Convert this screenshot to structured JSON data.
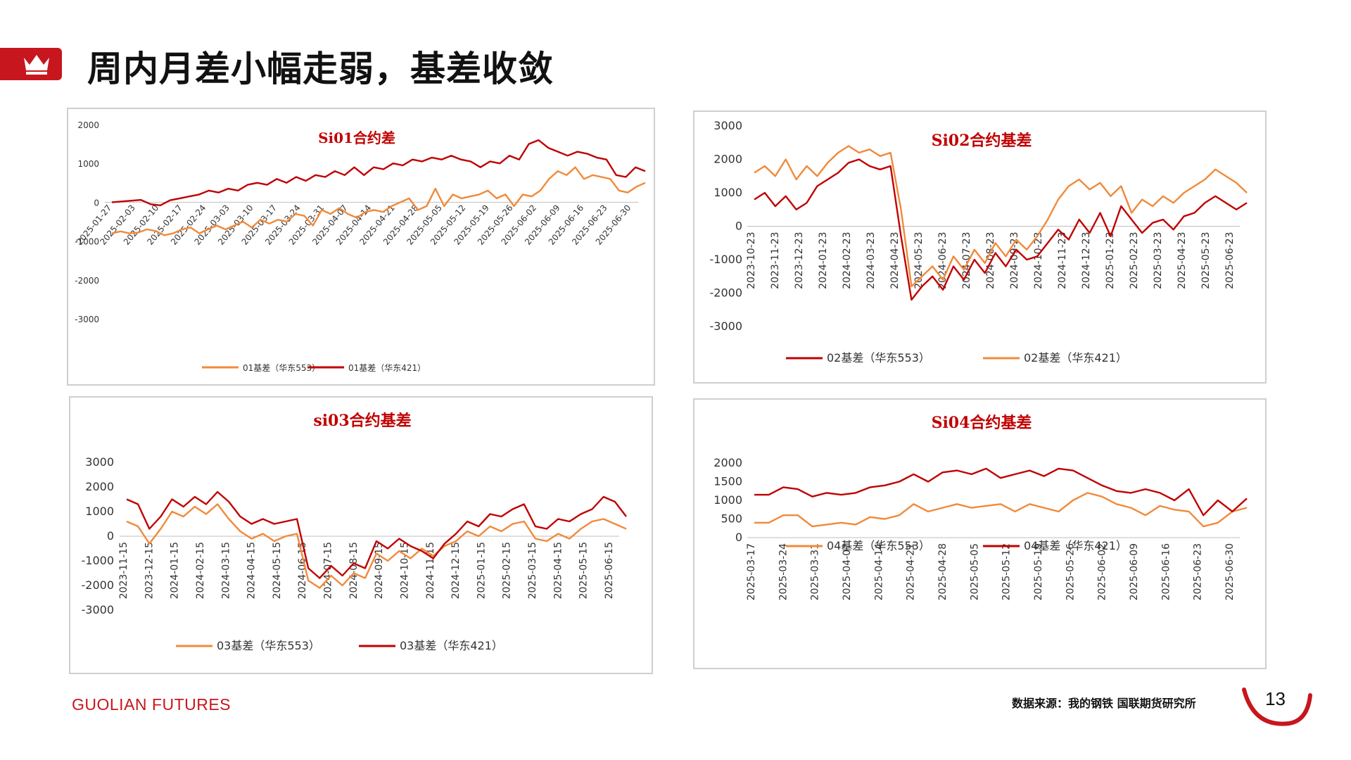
{
  "page": {
    "title": "周内月差小幅走弱，基差收敛",
    "brand": "GUOLIAN FUTURES",
    "source": "数据来源：我的钢铁  国联期货研究所",
    "page_number": "13"
  },
  "colors": {
    "brand_red": "#c7161d",
    "series_red": "#c00000",
    "series_orange": "#f08a3a"
  },
  "chart_data": [
    {
      "id": "c1",
      "type": "line",
      "title": "Si01合约差",
      "ylim": [
        -3000,
        2000
      ],
      "yticks": [
        2000,
        1000,
        0,
        -1000,
        -2000,
        -3000
      ],
      "xticks": [
        "2025-01-27",
        "2025-02-03",
        "2025-02-10",
        "2025-02-17",
        "2025-02-24",
        "2025-03-03",
        "2025-03-10",
        "2025-03-17",
        "2025-03-24",
        "2025-03-31",
        "2025-04-07",
        "2025-04-14",
        "2025-04-21",
        "2025-04-28",
        "2025-05-05",
        "2025-05-12",
        "2025-05-19",
        "2025-05-26",
        "2025-06-02",
        "2025-06-09",
        "2025-06-16",
        "2025-06-23",
        "2025-06-30"
      ],
      "grid": false,
      "legend": "bottom",
      "series": [
        {
          "name": "01基差（华东553）",
          "color": "#f08a3a",
          "values": [
            -800,
            -750,
            -800,
            -780,
            -700,
            -740,
            -850,
            -800,
            -700,
            -650,
            -800,
            -700,
            -600,
            -700,
            -600,
            -500,
            -650,
            -450,
            -550,
            -450,
            -500,
            -300,
            -350,
            -600,
            -200,
            -300,
            -150,
            -300,
            -400,
            -250,
            -200,
            -250,
            -100,
            0,
            100,
            -200,
            -100,
            350,
            -100,
            200,
            100,
            150,
            200,
            300,
            100,
            200,
            -100,
            200,
            150,
            300,
            600,
            800,
            700,
            900,
            600,
            700,
            650,
            600,
            300,
            250,
            400,
            500
          ]
        },
        {
          "name": "01基差（华东421）",
          "color": "#c00000",
          "values": [
            0,
            20,
            40,
            60,
            -50,
            -80,
            50,
            100,
            150,
            200,
            300,
            250,
            350,
            300,
            450,
            500,
            450,
            600,
            500,
            650,
            550,
            700,
            650,
            800,
            700,
            900,
            700,
            900,
            850,
            1000,
            950,
            1100,
            1050,
            1150,
            1100,
            1200,
            1100,
            1050,
            900,
            1050,
            1000,
            1200,
            1100,
            1500,
            1600,
            1400,
            1300,
            1200,
            1300,
            1250,
            1150,
            1100,
            700,
            650,
            900,
            800
          ]
        }
      ]
    },
    {
      "id": "c2",
      "type": "line",
      "title": "Si02合约基差",
      "ylim": [
        -3000,
        3000
      ],
      "yticks": [
        3000,
        2000,
        1000,
        0,
        -1000,
        -2000,
        -3000
      ],
      "xticks": [
        "2023-10-23",
        "2023-11-23",
        "2023-12-23",
        "2024-01-23",
        "2024-02-23",
        "2024-03-23",
        "2024-04-23",
        "2024-05-23",
        "2024-06-23",
        "2024-07-23",
        "2024-08-23",
        "2024-09-23",
        "2024-10-23",
        "2024-11-23",
        "2024-12-23",
        "2025-01-23",
        "2025-02-23",
        "2025-03-23",
        "2025-04-23",
        "2025-05-23",
        "2025-06-23"
      ],
      "grid": false,
      "legend": "bottom",
      "series": [
        {
          "name": "02基差（华东553）",
          "color": "#c00000",
          "values": [
            800,
            1000,
            600,
            900,
            500,
            700,
            1200,
            1400,
            1600,
            1900,
            2000,
            1800,
            1700,
            1800,
            -300,
            -2200,
            -1800,
            -1500,
            -1900,
            -1200,
            -1600,
            -1000,
            -1400,
            -800,
            -1200,
            -700,
            -1000,
            -900,
            -500,
            -100,
            -400,
            200,
            -200,
            400,
            -300,
            600,
            200,
            -200,
            100,
            200,
            -100,
            300,
            400,
            700,
            900,
            700,
            500,
            700
          ]
        },
        {
          "name": "02基差（华东421）",
          "color": "#f08a3a",
          "values": [
            1600,
            1800,
            1500,
            2000,
            1400,
            1800,
            1500,
            1900,
            2200,
            2400,
            2200,
            2300,
            2100,
            2200,
            500,
            -1800,
            -1500,
            -1200,
            -1600,
            -900,
            -1300,
            -700,
            -1100,
            -500,
            -900,
            -400,
            -700,
            -300,
            200,
            800,
            1200,
            1400,
            1100,
            1300,
            900,
            1200,
            400,
            800,
            600,
            900,
            700,
            1000,
            1200,
            1400,
            1700,
            1500,
            1300,
            1000
          ]
        }
      ]
    },
    {
      "id": "c3",
      "type": "line",
      "title": "si03合约基差",
      "ylim": [
        -3000,
        3000
      ],
      "yticks": [
        3000,
        2000,
        1000,
        0,
        -1000,
        -2000,
        -3000
      ],
      "xticks": [
        "2023-11-15",
        "2023-12-15",
        "2024-01-15",
        "2024-02-15",
        "2024-03-15",
        "2024-04-15",
        "2024-05-15",
        "2024-06-15",
        "2024-07-15",
        "2024-08-15",
        "2024-09-15",
        "2024-10-15",
        "2024-11-15",
        "2024-12-15",
        "2025-01-15",
        "2025-02-15",
        "2025-03-15",
        "2025-04-15",
        "2025-05-15",
        "2025-06-15"
      ],
      "grid": false,
      "legend": "bottom",
      "series": [
        {
          "name": "03基差（华东553）",
          "color": "#f08a3a",
          "values": [
            600,
            400,
            -300,
            300,
            1000,
            800,
            1200,
            900,
            1300,
            700,
            200,
            -100,
            100,
            -200,
            0,
            100,
            -1800,
            -2100,
            -1600,
            -2000,
            -1500,
            -1700,
            -700,
            -1000,
            -600,
            -900,
            -500,
            -800,
            -400,
            -200,
            200,
            0,
            400,
            200,
            500,
            600,
            -100,
            -200,
            100,
            -100,
            300,
            600,
            700,
            500,
            300
          ]
        },
        {
          "name": "03基差（华东421）",
          "color": "#c00000",
          "values": [
            1500,
            1300,
            300,
            800,
            1500,
            1200,
            1600,
            1300,
            1800,
            1400,
            800,
            500,
            700,
            500,
            600,
            700,
            -1300,
            -1700,
            -1200,
            -1600,
            -1100,
            -1300,
            -200,
            -500,
            -100,
            -400,
            -600,
            -900,
            -300,
            100,
            600,
            400,
            900,
            800,
            1100,
            1300,
            400,
            300,
            700,
            600,
            900,
            1100,
            1600,
            1400,
            800
          ]
        }
      ]
    },
    {
      "id": "c4",
      "type": "line",
      "title": "Si04合约基差",
      "ylim": [
        0,
        2000
      ],
      "yticks": [
        2000,
        1500,
        1000,
        500,
        0
      ],
      "xticks": [
        "2025-03-17",
        "2025-03-24",
        "2025-03-31",
        "2025-04-07",
        "2025-04-14",
        "2025-04-21",
        "2025-04-28",
        "2025-05-05",
        "2025-05-12",
        "2025-05-19",
        "2025-05-26",
        "2025-06-02",
        "2025-06-09",
        "2025-06-16",
        "2025-06-23",
        "2025-06-30"
      ],
      "grid": false,
      "legend": "bottom",
      "series": [
        {
          "name": "04基差（华东553）",
          "color": "#f08a3a",
          "values": [
            400,
            400,
            600,
            600,
            300,
            350,
            400,
            350,
            550,
            500,
            600,
            900,
            700,
            800,
            900,
            800,
            850,
            900,
            700,
            900,
            800,
            700,
            1000,
            1200,
            1100,
            900,
            800,
            600,
            850,
            750,
            700,
            300,
            400,
            700,
            800
          ]
        },
        {
          "name": "04基差（华东421）",
          "color": "#c00000",
          "values": [
            1150,
            1150,
            1350,
            1300,
            1100,
            1200,
            1150,
            1200,
            1350,
            1400,
            1500,
            1700,
            1500,
            1750,
            1800,
            1700,
            1850,
            1600,
            1700,
            1800,
            1650,
            1850,
            1800,
            1600,
            1400,
            1250,
            1200,
            1300,
            1200,
            1000,
            1300,
            600,
            1000,
            700,
            1050
          ]
        }
      ]
    }
  ]
}
